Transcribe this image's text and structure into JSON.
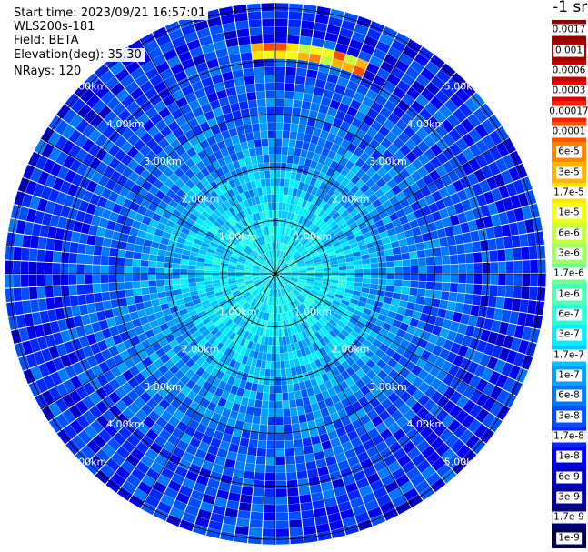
{
  "header": {
    "start_time": "Start time: 2023/09/21 16:57:01",
    "instrument": "WLS200s-181",
    "field": "Field: BETA",
    "elevation": "Elevation(deg): 35.30",
    "nrays": "NRays: 120"
  },
  "colorbar": {
    "unit_label": "-1 sr",
    "levels": [
      {
        "label": "0.0017",
        "color": "#8b0000"
      },
      {
        "label": "0.001",
        "color": "#ac0000"
      },
      {
        "label": "0.0006",
        "color": "#c80000"
      },
      {
        "label": "0.0003",
        "color": "#e60000"
      },
      {
        "label": "0.00017",
        "color": "#ff1e00"
      },
      {
        "label": "0.0001",
        "color": "#ff5000"
      },
      {
        "label": "6e-5",
        "color": "#ff8200"
      },
      {
        "label": "3e-5",
        "color": "#ffb400"
      },
      {
        "label": "1.7e-5",
        "color": "#ffe600"
      },
      {
        "label": "1e-5",
        "color": "#f0ff0f"
      },
      {
        "label": "6e-6",
        "color": "#c3ff3c"
      },
      {
        "label": "3e-6",
        "color": "#9cff63"
      },
      {
        "label": "1.7e-6",
        "color": "#73ff8c"
      },
      {
        "label": "1e-6",
        "color": "#4bffb4"
      },
      {
        "label": "6e-7",
        "color": "#26ffd9"
      },
      {
        "label": "3e-7",
        "color": "#00f0ff"
      },
      {
        "label": "1.7e-7",
        "color": "#00c8ff"
      },
      {
        "label": "1e-7",
        "color": "#00a0ff"
      },
      {
        "label": "6e-8",
        "color": "#0078ff"
      },
      {
        "label": "3e-8",
        "color": "#0050ff"
      },
      {
        "label": "1.7e-8",
        "color": "#0028ff"
      },
      {
        "label": "1e-8",
        "color": "#0000f0"
      },
      {
        "label": "6e-9",
        "color": "#0000c8"
      },
      {
        "label": "3e-9",
        "color": "#0000a0"
      },
      {
        "label": "1.7e-9",
        "color": "#000078"
      },
      {
        "label": "1e-9",
        "color": "#00004b"
      }
    ]
  },
  "chart_data": {
    "type": "heatmap",
    "projection": "polar PPI scan",
    "field": "BETA",
    "elevation_deg": 35.3,
    "n_rays": 120,
    "range_rings_km": [
      1,
      2,
      3,
      4,
      5
    ],
    "ring_labels": [
      "1.00km",
      "2.00km",
      "3.00km",
      "4.00km",
      "5.00km"
    ],
    "azimuth_lines_deg": [
      0,
      30,
      60,
      90,
      120,
      150,
      180,
      210,
      240,
      270,
      300,
      330
    ],
    "max_range_km": 5.1,
    "typical_value_by_range": [
      {
        "range_km": 0.5,
        "value": 3e-07
      },
      {
        "range_km": 1.5,
        "value": 1.7e-07
      },
      {
        "range_km": 2.5,
        "value": 6e-08
      },
      {
        "range_km": 3.5,
        "value": 3e-08
      },
      {
        "range_km": 4.5,
        "value": 1.7e-08
      }
    ],
    "high_return_feature": {
      "azimuth_deg": [
        355,
        25
      ],
      "range_km": [
        4.1,
        4.3
      ],
      "value_range": [
        3e-06,
        0.00017
      ]
    }
  }
}
